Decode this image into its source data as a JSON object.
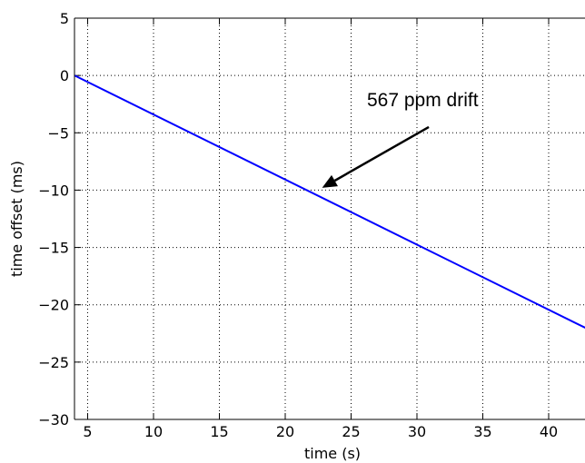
{
  "chart_data": {
    "type": "line",
    "xlabel": "time (s)",
    "ylabel": "time offset (ms)",
    "xlim": [
      4,
      44
    ],
    "ylim": [
      -30,
      5
    ],
    "xticks": [
      5,
      10,
      15,
      20,
      25,
      30,
      35,
      40
    ],
    "yticks": [
      5,
      0,
      -5,
      -10,
      -15,
      -20,
      -25,
      -30
    ],
    "ytick_labels": [
      "5",
      "0",
      "−5",
      "−10",
      "−15",
      "−20",
      "−25",
      "−30"
    ],
    "grid": true,
    "series": [
      {
        "color": "#0000ff",
        "x": [
          4,
          44
        ],
        "y": [
          0,
          -22.7
        ]
      }
    ],
    "annotation": {
      "text": "567 ppm drift",
      "arrow_from": [
        30.9,
        -4.5
      ],
      "arrow_to": [
        22.8,
        -9.8
      ]
    }
  }
}
